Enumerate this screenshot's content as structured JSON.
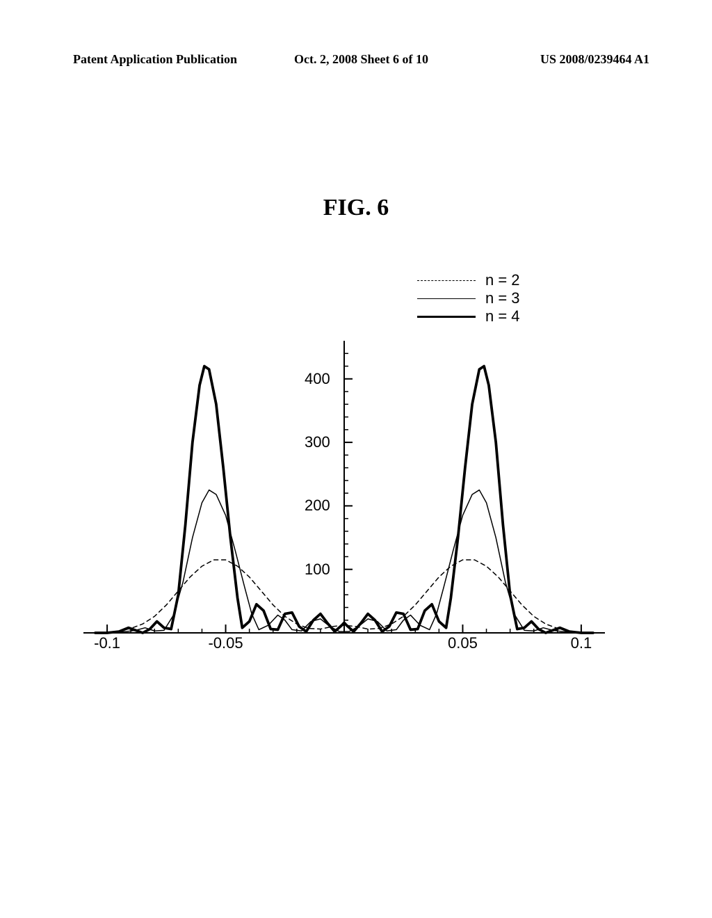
{
  "header": {
    "left": "Patent Application Publication",
    "center": "Oct. 2, 2008  Sheet 6 of 10",
    "right": "US 2008/0239464 A1"
  },
  "fig_title": "FIG.  6",
  "legend": {
    "items": [
      {
        "label": "n = 2",
        "stroke_width": 1.5,
        "dash": "6,5"
      },
      {
        "label": "n = 3",
        "stroke_width": 1.5,
        "dash": ""
      },
      {
        "label": "n = 4",
        "stroke_width": 3.8,
        "dash": ""
      }
    ]
  },
  "chart": {
    "type": "line",
    "background_color": "#ffffff",
    "axis_color": "#000000",
    "axis_stroke_width": 2,
    "tick_font_size": 22,
    "x_axis": {
      "min": -0.11,
      "max": 0.11,
      "tick_labels": [
        {
          "value": -0.1,
          "text": "-0.1"
        },
        {
          "value": -0.05,
          "text": "-0.05"
        },
        {
          "value": 0.05,
          "text": "0.05"
        },
        {
          "value": 0.1,
          "text": "0.1"
        }
      ],
      "minor_ticks": [
        -0.1,
        -0.09,
        -0.08,
        -0.07,
        -0.06,
        -0.05,
        -0.04,
        -0.03,
        -0.02,
        -0.01,
        0.01,
        0.02,
        0.03,
        0.04,
        0.05,
        0.06,
        0.07,
        0.08,
        0.09,
        0.1
      ]
    },
    "y_axis": {
      "min": 0,
      "max": 460,
      "tick_labels": [
        {
          "value": 100,
          "text": "100"
        },
        {
          "value": 200,
          "text": "200"
        },
        {
          "value": 300,
          "text": "300"
        },
        {
          "value": 400,
          "text": "400"
        }
      ],
      "minor_ticks": [
        20,
        40,
        60,
        80,
        100,
        120,
        140,
        160,
        180,
        200,
        220,
        240,
        260,
        280,
        300,
        320,
        340,
        360,
        380,
        400,
        420,
        440
      ]
    },
    "series": [
      {
        "name": "n2",
        "color": "#000000",
        "stroke_width": 1.5,
        "dash": "6,5",
        "points": [
          [
            -0.105,
            0
          ],
          [
            -0.1,
            1
          ],
          [
            -0.095,
            3
          ],
          [
            -0.09,
            7
          ],
          [
            -0.085,
            14
          ],
          [
            -0.08,
            26
          ],
          [
            -0.075,
            44
          ],
          [
            -0.07,
            66
          ],
          [
            -0.065,
            88
          ],
          [
            -0.06,
            105
          ],
          [
            -0.055,
            115
          ],
          [
            -0.05,
            115
          ],
          [
            -0.045,
            105
          ],
          [
            -0.04,
            88
          ],
          [
            -0.035,
            66
          ],
          [
            -0.03,
            44
          ],
          [
            -0.025,
            26
          ],
          [
            -0.02,
            14
          ],
          [
            -0.015,
            7
          ],
          [
            -0.01,
            6
          ],
          [
            -0.005,
            10
          ],
          [
            0,
            12
          ],
          [
            0.005,
            10
          ],
          [
            0.01,
            6
          ],
          [
            0.015,
            7
          ],
          [
            0.02,
            14
          ],
          [
            0.025,
            26
          ],
          [
            0.03,
            44
          ],
          [
            0.035,
            66
          ],
          [
            0.04,
            88
          ],
          [
            0.045,
            105
          ],
          [
            0.05,
            115
          ],
          [
            0.055,
            115
          ],
          [
            0.06,
            105
          ],
          [
            0.065,
            88
          ],
          [
            0.07,
            66
          ],
          [
            0.075,
            44
          ],
          [
            0.08,
            26
          ],
          [
            0.085,
            14
          ],
          [
            0.09,
            7
          ],
          [
            0.095,
            3
          ],
          [
            0.1,
            1
          ],
          [
            0.105,
            0
          ]
        ]
      },
      {
        "name": "n3",
        "color": "#000000",
        "stroke_width": 1.5,
        "dash": "",
        "points": [
          [
            -0.105,
            0
          ],
          [
            -0.098,
            0
          ],
          [
            -0.092,
            2
          ],
          [
            -0.088,
            4
          ],
          [
            -0.084,
            8
          ],
          [
            -0.08,
            3
          ],
          [
            -0.076,
            4
          ],
          [
            -0.072,
            28
          ],
          [
            -0.068,
            80
          ],
          [
            -0.064,
            150
          ],
          [
            -0.06,
            205
          ],
          [
            -0.057,
            225
          ],
          [
            -0.054,
            218
          ],
          [
            -0.05,
            185
          ],
          [
            -0.046,
            130
          ],
          [
            -0.042,
            72
          ],
          [
            -0.039,
            30
          ],
          [
            -0.036,
            5
          ],
          [
            -0.032,
            12
          ],
          [
            -0.028,
            28
          ],
          [
            -0.025,
            20
          ],
          [
            -0.022,
            5
          ],
          [
            -0.018,
            3
          ],
          [
            -0.014,
            18
          ],
          [
            -0.01,
            22
          ],
          [
            -0.006,
            10
          ],
          [
            -0.002,
            2
          ],
          [
            0,
            2
          ],
          [
            0.002,
            2
          ],
          [
            0.006,
            10
          ],
          [
            0.01,
            22
          ],
          [
            0.014,
            18
          ],
          [
            0.018,
            3
          ],
          [
            0.022,
            5
          ],
          [
            0.025,
            20
          ],
          [
            0.028,
            28
          ],
          [
            0.032,
            12
          ],
          [
            0.036,
            5
          ],
          [
            0.039,
            30
          ],
          [
            0.042,
            72
          ],
          [
            0.046,
            130
          ],
          [
            0.05,
            185
          ],
          [
            0.054,
            218
          ],
          [
            0.057,
            225
          ],
          [
            0.06,
            205
          ],
          [
            0.064,
            150
          ],
          [
            0.068,
            80
          ],
          [
            0.072,
            28
          ],
          [
            0.076,
            4
          ],
          [
            0.08,
            3
          ],
          [
            0.084,
            8
          ],
          [
            0.088,
            4
          ],
          [
            0.092,
            2
          ],
          [
            0.098,
            0
          ],
          [
            0.105,
            0
          ]
        ]
      },
      {
        "name": "n4",
        "color": "#000000",
        "stroke_width": 3.8,
        "dash": "",
        "points": [
          [
            -0.105,
            0
          ],
          [
            -0.1,
            0
          ],
          [
            -0.095,
            2
          ],
          [
            -0.091,
            8
          ],
          [
            -0.088,
            4
          ],
          [
            -0.085,
            0
          ],
          [
            -0.082,
            6
          ],
          [
            -0.079,
            18
          ],
          [
            -0.076,
            8
          ],
          [
            -0.073,
            6
          ],
          [
            -0.07,
            60
          ],
          [
            -0.067,
            170
          ],
          [
            -0.064,
            300
          ],
          [
            -0.061,
            390
          ],
          [
            -0.059,
            420
          ],
          [
            -0.057,
            415
          ],
          [
            -0.054,
            360
          ],
          [
            -0.051,
            260
          ],
          [
            -0.048,
            150
          ],
          [
            -0.045,
            55
          ],
          [
            -0.043,
            8
          ],
          [
            -0.04,
            18
          ],
          [
            -0.037,
            45
          ],
          [
            -0.034,
            35
          ],
          [
            -0.031,
            6
          ],
          [
            -0.028,
            5
          ],
          [
            -0.025,
            30
          ],
          [
            -0.022,
            32
          ],
          [
            -0.019,
            10
          ],
          [
            -0.016,
            2
          ],
          [
            -0.013,
            20
          ],
          [
            -0.01,
            30
          ],
          [
            -0.007,
            15
          ],
          [
            -0.004,
            2
          ],
          [
            -0.001,
            12
          ],
          [
            0,
            16
          ],
          [
            0.001,
            12
          ],
          [
            0.004,
            2
          ],
          [
            0.007,
            15
          ],
          [
            0.01,
            30
          ],
          [
            0.013,
            20
          ],
          [
            0.016,
            2
          ],
          [
            0.019,
            10
          ],
          [
            0.022,
            32
          ],
          [
            0.025,
            30
          ],
          [
            0.028,
            5
          ],
          [
            0.031,
            6
          ],
          [
            0.034,
            35
          ],
          [
            0.037,
            45
          ],
          [
            0.04,
            18
          ],
          [
            0.043,
            8
          ],
          [
            0.045,
            55
          ],
          [
            0.048,
            150
          ],
          [
            0.051,
            260
          ],
          [
            0.054,
            360
          ],
          [
            0.057,
            415
          ],
          [
            0.059,
            420
          ],
          [
            0.061,
            390
          ],
          [
            0.064,
            300
          ],
          [
            0.067,
            170
          ],
          [
            0.07,
            60
          ],
          [
            0.073,
            6
          ],
          [
            0.076,
            8
          ],
          [
            0.079,
            18
          ],
          [
            0.082,
            6
          ],
          [
            0.085,
            0
          ],
          [
            0.088,
            4
          ],
          [
            0.091,
            8
          ],
          [
            0.095,
            2
          ],
          [
            0.1,
            0
          ],
          [
            0.105,
            0
          ]
        ]
      }
    ]
  }
}
